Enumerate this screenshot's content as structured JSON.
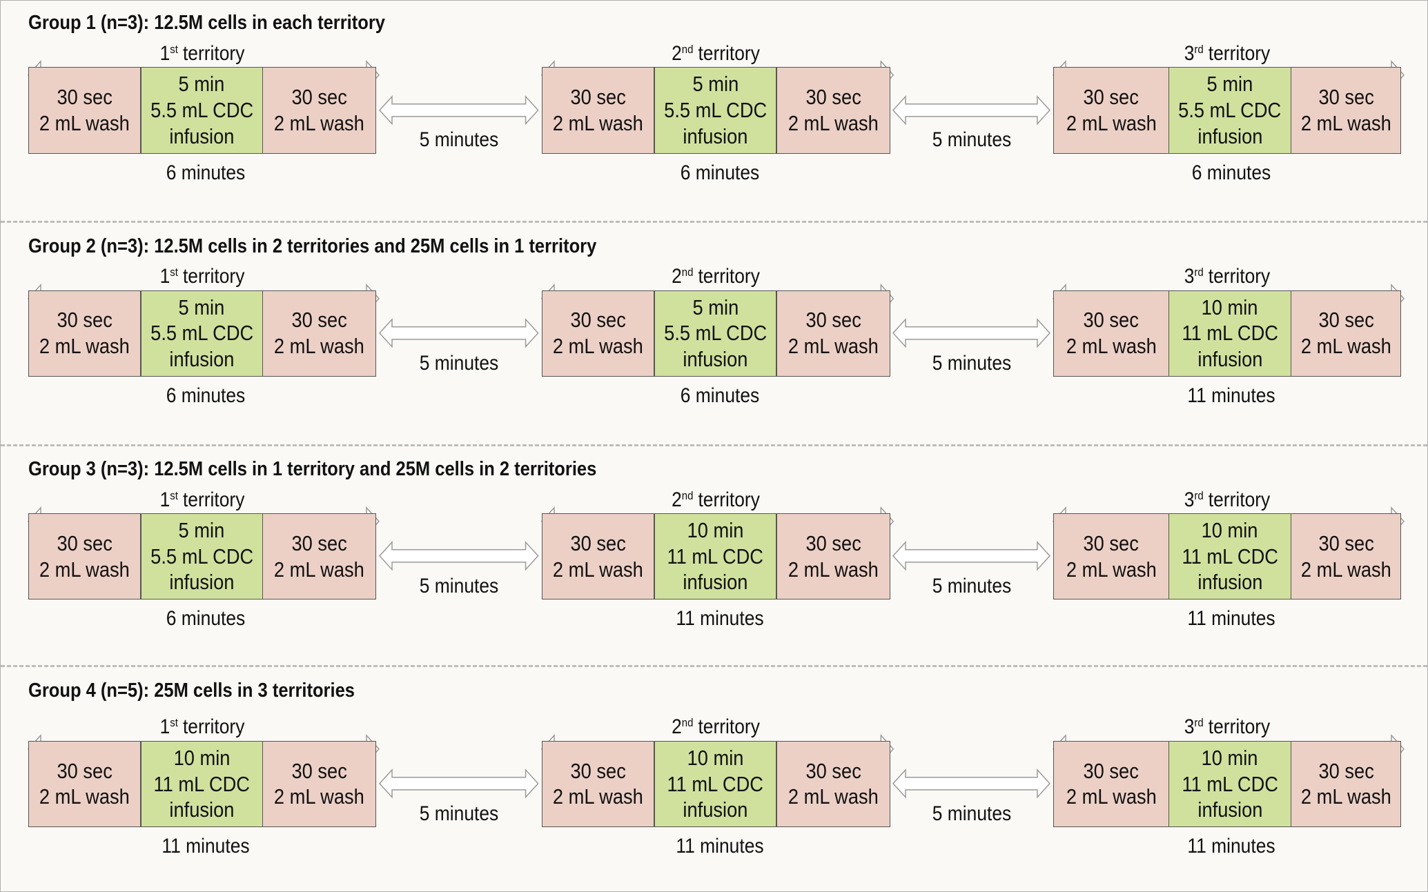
{
  "groups": [
    {
      "title": "Group 1 (n=3): 12.5M cells in each territory",
      "territories": [
        {
          "ordinal": "1",
          "suffix": "st",
          "label": "territory",
          "wash_time": "30 sec",
          "wash_vol": "2 mL wash",
          "inf_time": "5 min",
          "inf_vol": "5.5 mL CDC",
          "inf_label": "infusion",
          "total": "6 minutes"
        },
        {
          "ordinal": "2",
          "suffix": "nd",
          "label": "territory",
          "wash_time": "30 sec",
          "wash_vol": "2 mL wash",
          "inf_time": "5 min",
          "inf_vol": "5.5 mL CDC",
          "inf_label": "infusion",
          "total": "6 minutes"
        },
        {
          "ordinal": "3",
          "suffix": "rd",
          "label": "territory",
          "wash_time": "30 sec",
          "wash_vol": "2 mL wash",
          "inf_time": "5 min",
          "inf_vol": "5.5 mL CDC",
          "inf_label": "infusion",
          "total": "6 minutes"
        }
      ],
      "gaps": [
        "5 minutes",
        "5 minutes"
      ]
    },
    {
      "title": "Group 2 (n=3): 12.5M cells in 2 territories and 25M cells in 1 territory",
      "territories": [
        {
          "ordinal": "1",
          "suffix": "st",
          "label": "territory",
          "wash_time": "30 sec",
          "wash_vol": "2 mL wash",
          "inf_time": "5 min",
          "inf_vol": "5.5 mL CDC",
          "inf_label": "infusion",
          "total": "6 minutes"
        },
        {
          "ordinal": "2",
          "suffix": "nd",
          "label": "territory",
          "wash_time": "30 sec",
          "wash_vol": "2 mL wash",
          "inf_time": "5 min",
          "inf_vol": "5.5 mL CDC",
          "inf_label": "infusion",
          "total": "6 minutes"
        },
        {
          "ordinal": "3",
          "suffix": "rd",
          "label": "territory",
          "wash_time": "30 sec",
          "wash_vol": "2 mL wash",
          "inf_time": "10 min",
          "inf_vol": "11 mL CDC",
          "inf_label": "infusion",
          "total": "11 minutes"
        }
      ],
      "gaps": [
        "5 minutes",
        "5 minutes"
      ]
    },
    {
      "title": "Group 3 (n=3): 12.5M cells in 1 territory and 25M cells in 2 territories",
      "territories": [
        {
          "ordinal": "1",
          "suffix": "st",
          "label": "territory",
          "wash_time": "30 sec",
          "wash_vol": "2 mL wash",
          "inf_time": "5 min",
          "inf_vol": "5.5 mL CDC",
          "inf_label": "infusion",
          "total": "6 minutes"
        },
        {
          "ordinal": "2",
          "suffix": "nd",
          "label": "territory",
          "wash_time": "30 sec",
          "wash_vol": "2 mL wash",
          "inf_time": "10 min",
          "inf_vol": "11 mL CDC",
          "inf_label": "infusion",
          "total": "11 minutes"
        },
        {
          "ordinal": "3",
          "suffix": "rd",
          "label": "territory",
          "wash_time": "30 sec",
          "wash_vol": "2 mL wash",
          "inf_time": "10 min",
          "inf_vol": "11 mL CDC",
          "inf_label": "infusion",
          "total": "11 minutes"
        }
      ],
      "gaps": [
        "5 minutes",
        "5 minutes"
      ]
    },
    {
      "title": "Group 4 (n=5): 25M cells in 3 territories",
      "territories": [
        {
          "ordinal": "1",
          "suffix": "st",
          "label": "territory",
          "wash_time": "30 sec",
          "wash_vol": "2 mL wash",
          "inf_time": "10 min",
          "inf_vol": "11 mL CDC",
          "inf_label": "infusion",
          "total": "11 minutes"
        },
        {
          "ordinal": "2",
          "suffix": "nd",
          "label": "territory",
          "wash_time": "30 sec",
          "wash_vol": "2 mL wash",
          "inf_time": "10 min",
          "inf_vol": "11 mL CDC",
          "inf_label": "infusion",
          "total": "11 minutes"
        },
        {
          "ordinal": "3",
          "suffix": "rd",
          "label": "territory",
          "wash_time": "30 sec",
          "wash_vol": "2 mL wash",
          "inf_time": "10 min",
          "inf_vol": "11 mL CDC",
          "inf_label": "infusion",
          "total": "11 minutes"
        }
      ],
      "gaps": [
        "5 minutes",
        "5 minutes"
      ]
    }
  ]
}
